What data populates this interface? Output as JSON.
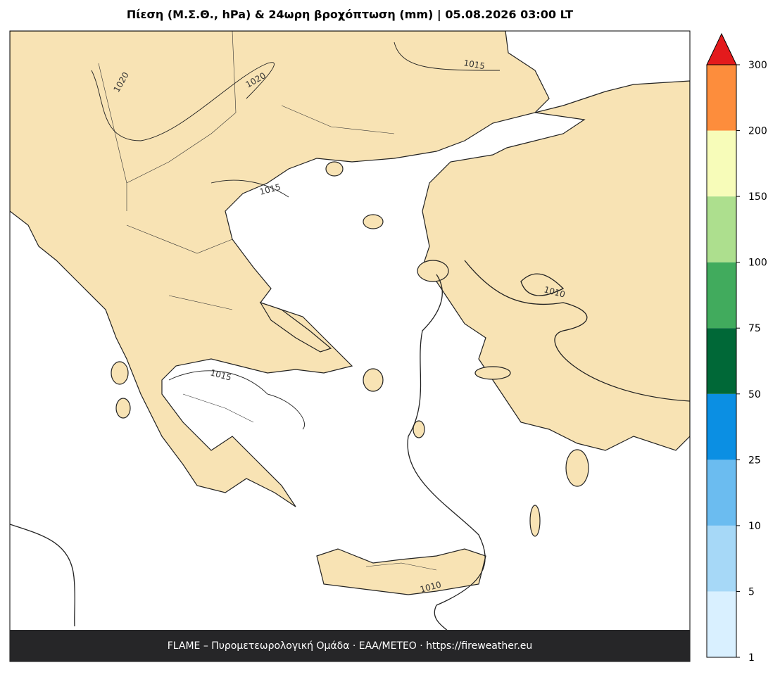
{
  "title": "Πίεση (Μ.Σ.Θ., hPa) & 24ωρη βροχόπτωση (mm)  |  05.08.2026 03:00 LT",
  "isobar_labels": [
    "1020",
    "1020",
    "1015",
    "1015",
    "1015",
    "1010",
    "1010"
  ],
  "colorbar": {
    "levels": [
      1,
      5,
      10,
      25,
      50,
      75,
      100,
      150,
      200,
      300
    ],
    "colors": [
      "#d9f0ff",
      "#a6d8f7",
      "#6bbcf0",
      "#0b8fe3",
      "#006837",
      "#41ab5d",
      "#addf8e",
      "#f7fcb9",
      "#fd8d3c"
    ],
    "extend_color": "#e31a1c"
  },
  "footer": "FLAME – Πυρομετεωρολογική Ομάδα · ΕΑΑ/METEO · https://fireweather.eu"
}
